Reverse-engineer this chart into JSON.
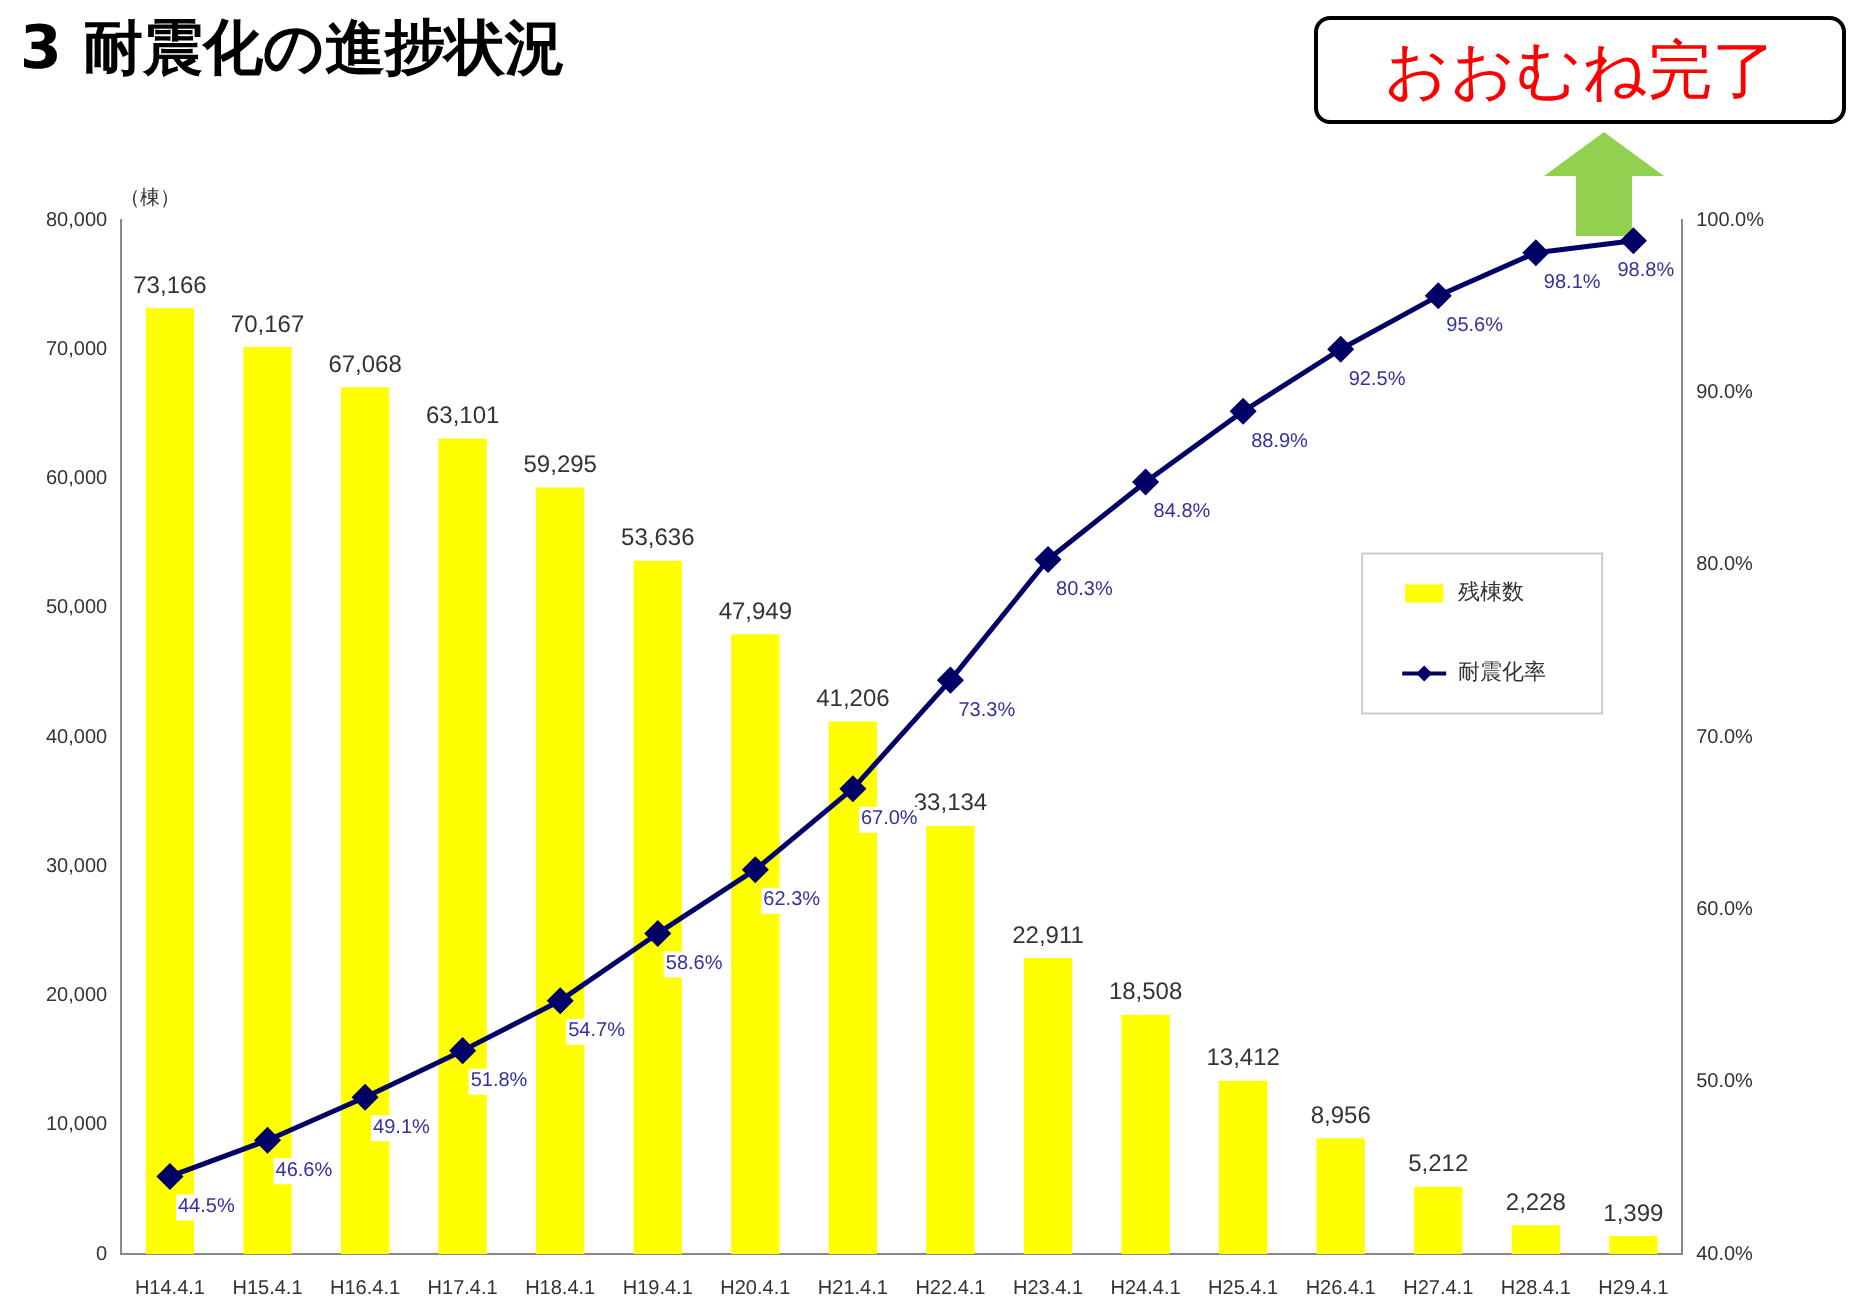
{
  "chart_data": {
    "type": "bar",
    "title": "3 耐震化の進捗状況",
    "ylabel": "（棟）",
    "annotations": [
      "おおむね完了"
    ],
    "categories": [
      "H14.4.1",
      "H15.4.1",
      "H16.4.1",
      "H17.4.1",
      "H18.4.1",
      "H19.4.1",
      "H20.4.1",
      "H21.4.1",
      "H22.4.1",
      "H23.4.1",
      "H24.4.1",
      "H25.4.1",
      "H26.4.1",
      "H27.4.1",
      "H28.4.1",
      "H29.4.1"
    ],
    "series": [
      {
        "name": "残棟数",
        "color": "#ffff00",
        "values": [
          73166,
          70167,
          67068,
          63101,
          59295,
          53636,
          47949,
          41206,
          33134,
          22911,
          18508,
          13412,
          8956,
          5212,
          2228,
          1399
        ],
        "value_labels": [
          "73,166",
          "70,167",
          "67,068",
          "63,101",
          "59,295",
          "53,636",
          "47,949",
          "41,206",
          "33,134",
          "22,911",
          "18,508",
          "13,412",
          "8,956",
          "5,212",
          "2,228",
          "1,399"
        ]
      },
      {
        "name": "耐震化率",
        "type": "line",
        "axis": "y2",
        "color": "#000066",
        "marker": "diamond",
        "values": [
          44.5,
          46.6,
          49.1,
          51.8,
          54.7,
          58.6,
          62.3,
          67.0,
          73.3,
          80.3,
          84.8,
          88.9,
          92.5,
          95.6,
          98.1,
          98.8
        ],
        "value_labels": [
          "44.5%",
          "46.6%",
          "49.1%",
          "51.8%",
          "54.7%",
          "58.6%",
          "62.3%",
          "67.0%",
          "73.3%",
          "80.3%",
          "84.8%",
          "88.9%",
          "92.5%",
          "95.6%",
          "98.1%",
          "98.8%"
        ]
      }
    ],
    "ylim": [
      0,
      80000
    ],
    "yticks": [
      {
        "value": 0,
        "label": "0"
      },
      {
        "value": 10000,
        "label": "10,000"
      },
      {
        "value": 20000,
        "label": "20,000"
      },
      {
        "value": 30000,
        "label": "30,000"
      },
      {
        "value": 40000,
        "label": "40,000"
      },
      {
        "value": 50000,
        "label": "50,000"
      },
      {
        "value": 60000,
        "label": "60,000"
      },
      {
        "value": 70000,
        "label": "70,000"
      },
      {
        "value": 80000,
        "label": "80,000"
      }
    ],
    "y2lim": [
      40,
      100
    ],
    "y2ticks": [
      {
        "value": 40,
        "label": "40.0%"
      },
      {
        "value": 50,
        "label": "50.0%"
      },
      {
        "value": 60,
        "label": "60.0%"
      },
      {
        "value": 70,
        "label": "70.0%"
      },
      {
        "value": 80,
        "label": "80.0%"
      },
      {
        "value": 90,
        "label": "90.0%"
      },
      {
        "value": 100,
        "label": "100.0%"
      }
    ],
    "legend": "right"
  }
}
